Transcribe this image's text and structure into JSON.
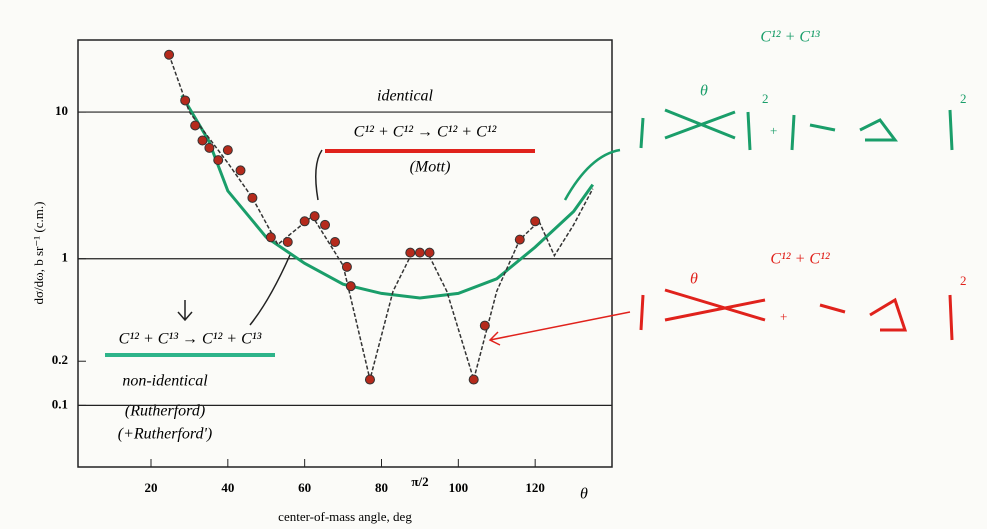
{
  "chart_data": {
    "type": "scatter",
    "xlabel": "center-of-mass angle, deg",
    "ylabel": "dσ/dω, b sr⁻¹ (c.m.)",
    "xlim": [
      1,
      140
    ],
    "xticks": [
      20,
      40,
      60,
      80,
      100,
      120
    ],
    "ylim": [
      0.038,
      31
    ],
    "yticks": [
      0.1,
      0.2,
      1,
      10
    ],
    "log_y": true,
    "grid": true,
    "series": [
      {
        "type": "line",
        "color": "#1a9e6a",
        "x": [
          28,
          35,
          40,
          50,
          60,
          70,
          80,
          90,
          100,
          110,
          120,
          130,
          135
        ],
        "values": [
          13,
          6.4,
          2.9,
          1.4,
          0.93,
          0.67,
          0.58,
          0.54,
          0.58,
          0.73,
          1.2,
          2.1,
          3.2
        ]
      },
      {
        "type": "line",
        "color": "#333333",
        "x": [
          24.7,
          30,
          40,
          46.4,
          53,
          62,
          70,
          77,
          83,
          88,
          92,
          97,
          104,
          110,
          116,
          121,
          125,
          130,
          135
        ],
        "values": [
          24.6,
          10,
          4.5,
          2.6,
          1.25,
          1.95,
          0.9,
          0.15,
          0.6,
          1.1,
          1.1,
          0.6,
          0.15,
          0.6,
          1.35,
          1.8,
          1.05,
          1.7,
          3.0
        ]
      },
      {
        "type": "scatter",
        "color": "#b52a1c",
        "x": [
          24.7,
          28.9,
          31.5,
          33.4,
          35.2,
          37.5,
          40,
          43.3,
          46.4,
          51.2,
          55.6,
          60,
          62.6,
          65.3,
          67.9,
          71,
          72,
          77,
          87.5,
          90,
          92.5,
          104,
          106.9,
          116,
          120
        ],
        "values": [
          24.6,
          12,
          8.1,
          6.4,
          5.7,
          4.7,
          5.5,
          4,
          2.6,
          1.4,
          1.3,
          1.8,
          1.95,
          1.7,
          1.3,
          0.88,
          0.65,
          0.15,
          1.1,
          1.1,
          1.1,
          0.15,
          0.35,
          1.35,
          1.8
        ]
      }
    ],
    "annotations": [
      "identical",
      "C¹² + C¹² → C¹² + C¹²",
      "(Mott)",
      "C¹² + C¹³ → C¹² + C¹³",
      "non-identical",
      "(Rutherford)",
      "(+Rutherford')",
      "C¹² + C¹³",
      "C¹² + C¹²",
      "π/2",
      "θ",
      "θ",
      "θ",
      "2",
      "+",
      "2",
      "2",
      "+"
    ]
  }
}
